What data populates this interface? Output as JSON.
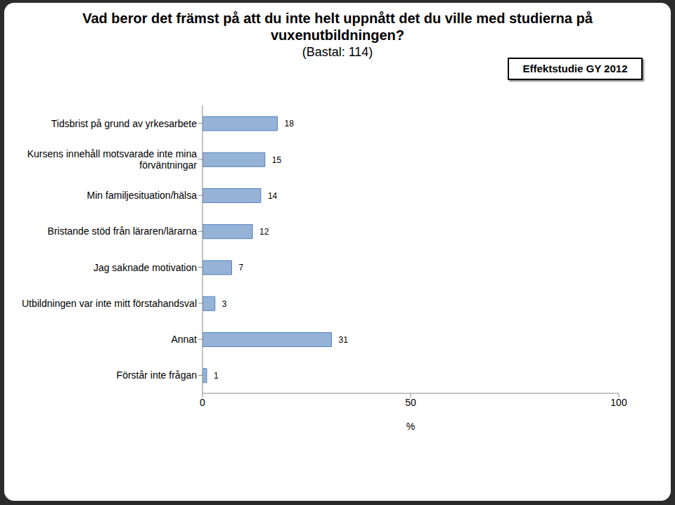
{
  "chart_data": {
    "type": "bar",
    "orientation": "horizontal",
    "title": "Vad beror det främst på att du inte helt uppnått det du ville med studierna på vuxenutbildningen?",
    "subtitle": "(Bastal: 114)",
    "annotation": "Effektstudie GY 2012",
    "x_label": "%",
    "categories": [
      "Tidsbrist på grund av yrkesarbete",
      "Kursens innehåll motsvarade inte mina förväntningar",
      "Min familjesituation/hälsa",
      "Bristande stöd från läraren/lärarna",
      "Jag saknade motivation",
      "Utbildningen var inte mitt förstahandsval",
      "Annat",
      "Förstår inte frågan"
    ],
    "values": [
      18,
      15,
      14,
      12,
      7,
      3,
      31,
      1
    ],
    "color": "#95b3d7",
    "xlim": [
      0,
      100
    ],
    "xticks": [
      0,
      50,
      100
    ],
    "data_labels": true,
    "grid": false
  }
}
